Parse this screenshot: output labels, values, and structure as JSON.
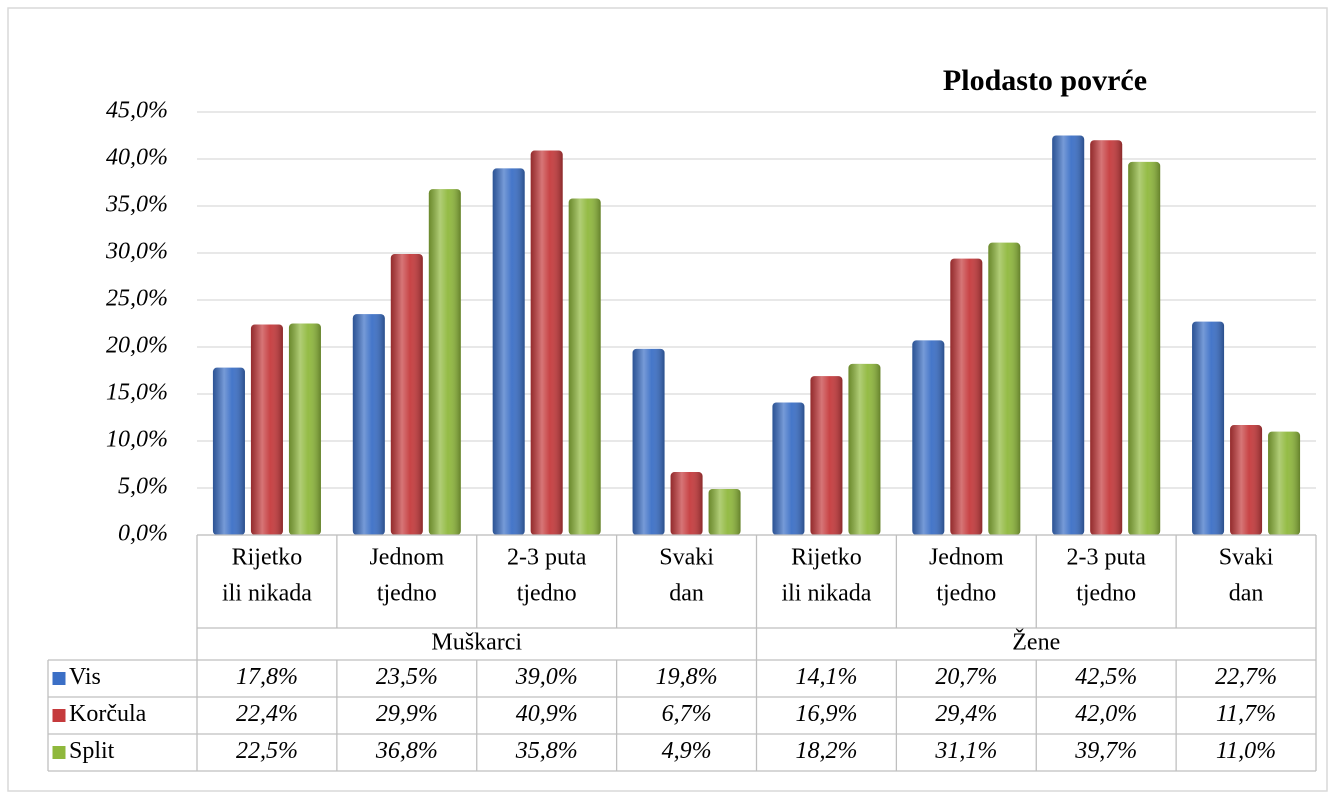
{
  "chart_data": {
    "type": "bar",
    "title": "Plodasto povrće",
    "categories": [
      [
        "Rijetko",
        "ili nikada"
      ],
      [
        "Jednom",
        "tjedno"
      ],
      [
        "2-3 puta",
        "tjedno"
      ],
      [
        "Svaki",
        "dan"
      ],
      [
        "Rijetko",
        "ili nikada"
      ],
      [
        "Jednom",
        "tjedno"
      ],
      [
        "2-3 puta",
        "tjedno"
      ],
      [
        "Svaki",
        "dan"
      ]
    ],
    "group_labels": [
      "Muškarci",
      "Žene"
    ],
    "series": [
      {
        "name": "Vis",
        "color": "#3b6fc6",
        "values": [
          17.8,
          23.5,
          39.0,
          19.8,
          14.1,
          20.7,
          42.5,
          22.7
        ],
        "value_labels": [
          "17,8%",
          "23,5%",
          "39,0%",
          "19,8%",
          "14,1%",
          "20,7%",
          "42,5%",
          "22,7%"
        ]
      },
      {
        "name": "Korčula",
        "color": "#c53a3c",
        "values": [
          22.4,
          29.9,
          40.9,
          6.7,
          16.9,
          29.4,
          42.0,
          11.7
        ],
        "value_labels": [
          "22,4%",
          "29,9%",
          "40,9%",
          "6,7%",
          "16,9%",
          "29,4%",
          "42,0%",
          "11,7%"
        ]
      },
      {
        "name": "Split",
        "color": "#8fb83c",
        "values": [
          22.5,
          36.8,
          35.8,
          4.9,
          18.2,
          31.1,
          39.7,
          11.0
        ],
        "value_labels": [
          "22,5%",
          "36,8%",
          "35,8%",
          "4,9%",
          "18,2%",
          "31,1%",
          "39,7%",
          "11,0%"
        ]
      }
    ],
    "ylim": [
      0,
      45
    ],
    "yticks": [
      {
        "value": 0,
        "label": "0,0%"
      },
      {
        "value": 5,
        "label": "5,0%"
      },
      {
        "value": 10,
        "label": "10,0%"
      },
      {
        "value": 15,
        "label": "15,0%"
      },
      {
        "value": 20,
        "label": "20,0%"
      },
      {
        "value": 25,
        "label": "25,0%"
      },
      {
        "value": 30,
        "label": "30,0%"
      },
      {
        "value": 35,
        "label": "35,0%"
      },
      {
        "value": 40,
        "label": "40,0%"
      },
      {
        "value": 45,
        "label": "45,0%"
      }
    ],
    "grid": true
  }
}
